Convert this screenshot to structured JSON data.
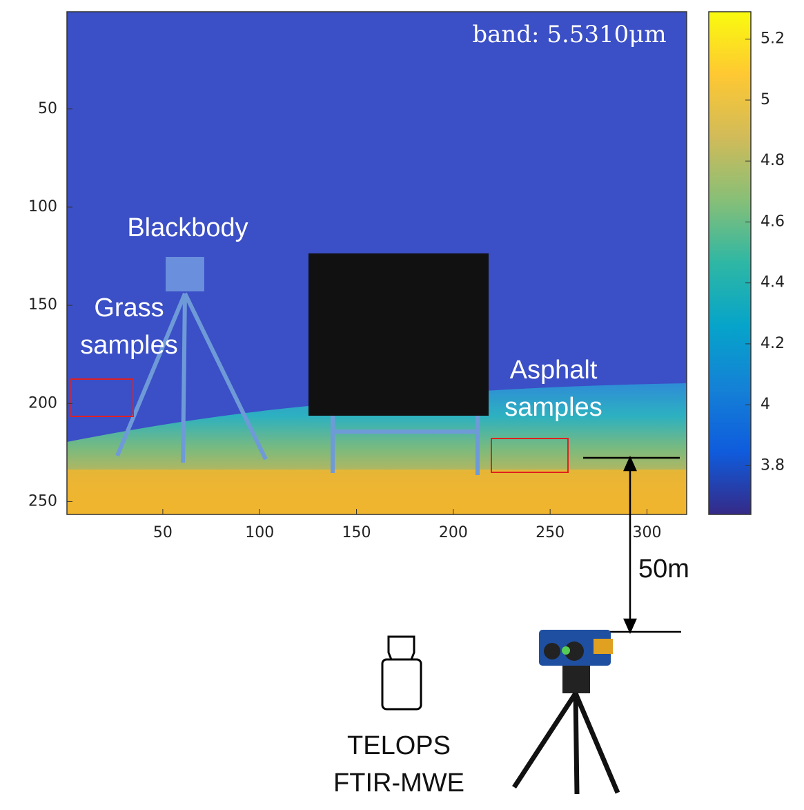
{
  "chart_data": {
    "type": "heatmap",
    "annotation": "band: 5.5310μm",
    "xlim": [
      0.5,
      320.5
    ],
    "ylim": [
      0.5,
      256.5
    ],
    "y_reversed": true,
    "xticks": [
      50,
      100,
      150,
      200,
      250,
      300
    ],
    "yticks": [
      50,
      100,
      150,
      200,
      250
    ],
    "colorbar": {
      "colormap": "parula",
      "clim": [
        3.64,
        5.29
      ],
      "ticks": [
        3.8,
        4,
        4.2,
        4.4,
        4.6,
        4.8,
        5,
        5.2
      ]
    }
  },
  "labels": {
    "blackbody": "Blackbody",
    "grass": [
      "Grass",
      "samples"
    ],
    "asphalt": [
      "Asphalt",
      "samples"
    ],
    "distance": "50m",
    "instrument": [
      "TELOPS",
      "FTIR-MWE"
    ]
  }
}
